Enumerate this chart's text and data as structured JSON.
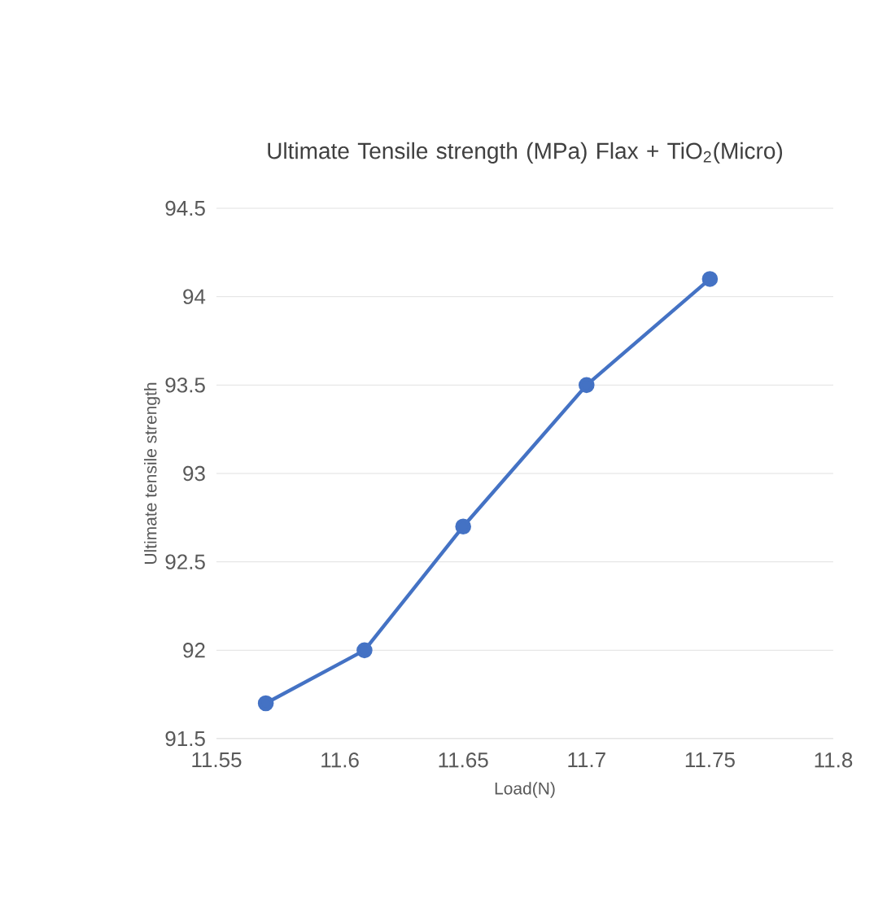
{
  "chart_data": {
    "type": "line",
    "title": "Ultimate Tensile strength (MPa) Flax + TiO$_{2}$(Micro)",
    "xlabel": "Load(N)",
    "ylabel": "Ultimate tensile strength",
    "x": [
      11.57,
      11.61,
      11.65,
      11.7,
      11.75
    ],
    "series": [
      {
        "color": "#4472c4",
        "values": [
          91.7,
          92.0,
          92.7,
          93.5,
          94.1
        ]
      }
    ],
    "xlim": [
      11.55,
      11.8
    ],
    "xticks": [
      11.55,
      11.6,
      11.65,
      11.7,
      11.75,
      11.8
    ],
    "ylim": [
      91.5,
      94.5
    ],
    "yticks": [
      91.5,
      92,
      92.5,
      93,
      93.5,
      94,
      94.5
    ],
    "grid": "y",
    "marker": "circle",
    "line_style": "solid"
  }
}
